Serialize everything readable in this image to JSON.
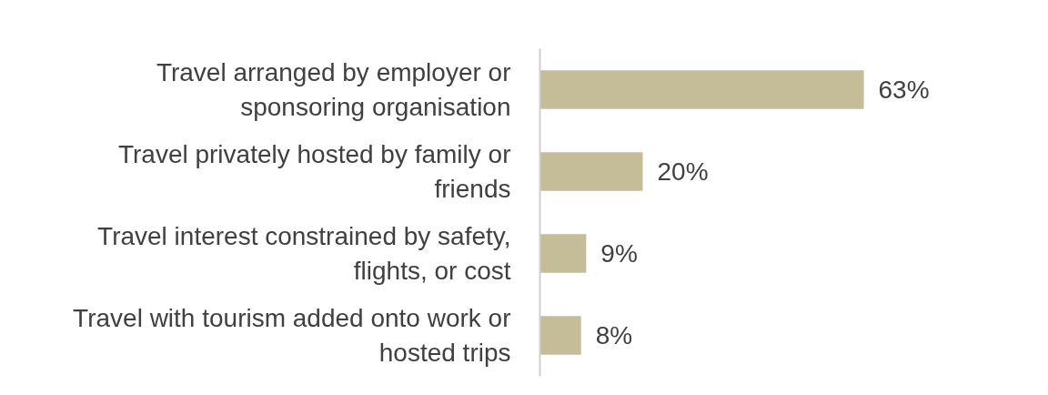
{
  "chart_data": {
    "type": "bar",
    "orientation": "horizontal",
    "categories": [
      "Travel arranged by employer or sponsoring organisation",
      "Travel privately hosted by family or friends",
      "Travel interest constrained by safety, flights, or cost",
      "Travel with tourism added onto work or hosted trips"
    ],
    "values": [
      63,
      20,
      9,
      8
    ],
    "value_labels": [
      "63%",
      "20%",
      "9%",
      "8%"
    ],
    "color": "#c4bd97",
    "grid": false
  }
}
